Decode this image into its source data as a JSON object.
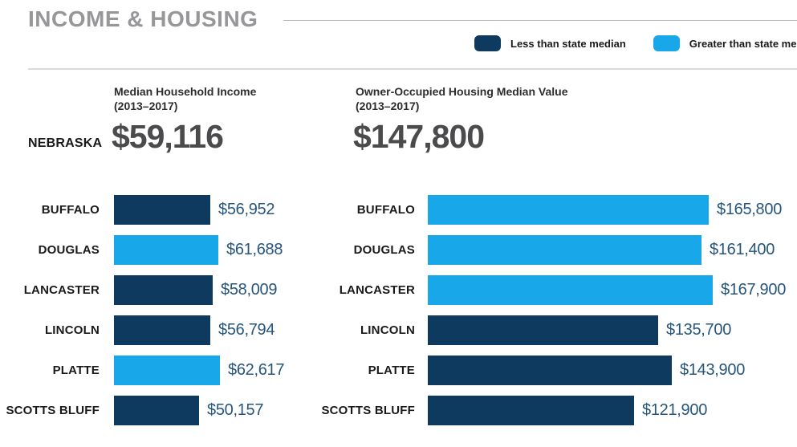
{
  "page": {
    "title": "INCOME & HOUSING"
  },
  "colors": {
    "less": "#0d3a5e",
    "greater": "#18a7e8",
    "value_label": "#26567e",
    "title_gray": "#97979a"
  },
  "legend": {
    "items": [
      {
        "key": "less",
        "label": "Less than state median"
      },
      {
        "key": "greater",
        "label": "Greater than state median"
      }
    ]
  },
  "state_summary": {
    "name": "NEBRASKA",
    "income_heading": "Median Household Income",
    "income_period": "(2013–2017)",
    "income_value": "$59,116",
    "housing_heading": "Owner-Occupied Housing Median Value",
    "housing_period": "(2013–2017)",
    "housing_value": "$147,800"
  },
  "chart_data": [
    {
      "type": "bar",
      "orientation": "horizontal",
      "title": "Median Household Income (2013–2017)",
      "state_reference": {
        "name": "Nebraska",
        "value": 59116,
        "display": "$59,116"
      },
      "categories": [
        "Buffalo",
        "Douglas",
        "Lancaster",
        "Lincoln",
        "Platte",
        "Scotts Bluff"
      ],
      "values": [
        56952,
        61688,
        58009,
        56794,
        62617,
        50157
      ],
      "series_by_bar": [
        "less",
        "greater",
        "less",
        "less",
        "greater",
        "less"
      ],
      "legend_position": "top-right",
      "grid": false,
      "rows": [
        {
          "county": "BUFFALO",
          "value": 56952,
          "display": "$56,952",
          "series": "less"
        },
        {
          "county": "DOUGLAS",
          "value": 61688,
          "display": "$61,688",
          "series": "greater"
        },
        {
          "county": "LANCASTER",
          "value": 58009,
          "display": "$58,009",
          "series": "less"
        },
        {
          "county": "LINCOLN",
          "value": 56794,
          "display": "$56,794",
          "series": "less"
        },
        {
          "county": "PLATTE",
          "value": 62617,
          "display": "$62,617",
          "series": "greater"
        },
        {
          "county": "SCOTTS BLUFF",
          "value": 50157,
          "display": "$50,157",
          "series": "less"
        }
      ]
    },
    {
      "type": "bar",
      "orientation": "horizontal",
      "title": "Owner-Occupied Housing Median Value (2013–2017)",
      "state_reference": {
        "name": "Nebraska",
        "value": 147800,
        "display": "$147,800"
      },
      "categories": [
        "Buffalo",
        "Douglas",
        "Lancaster",
        "Lincoln",
        "Platte",
        "Scotts Bluff"
      ],
      "values": [
        165800,
        161400,
        167900,
        135700,
        143900,
        121900
      ],
      "series_by_bar": [
        "greater",
        "greater",
        "greater",
        "less",
        "less",
        "less"
      ],
      "legend_position": "top-right",
      "grid": false,
      "rows": [
        {
          "county": "BUFFALO",
          "value": 165800,
          "display": "$165,800",
          "series": "greater"
        },
        {
          "county": "DOUGLAS",
          "value": 161400,
          "display": "$161,400",
          "series": "greater"
        },
        {
          "county": "LANCASTER",
          "value": 167900,
          "display": "$167,900",
          "series": "greater"
        },
        {
          "county": "LINCOLN",
          "value": 135700,
          "display": "$135,700",
          "series": "less"
        },
        {
          "county": "PLATTE",
          "value": 143900,
          "display": "$143,900",
          "series": "less"
        },
        {
          "county": "SCOTTS BLUFF",
          "value": 121900,
          "display": "$121,900",
          "series": "less"
        }
      ]
    }
  ]
}
